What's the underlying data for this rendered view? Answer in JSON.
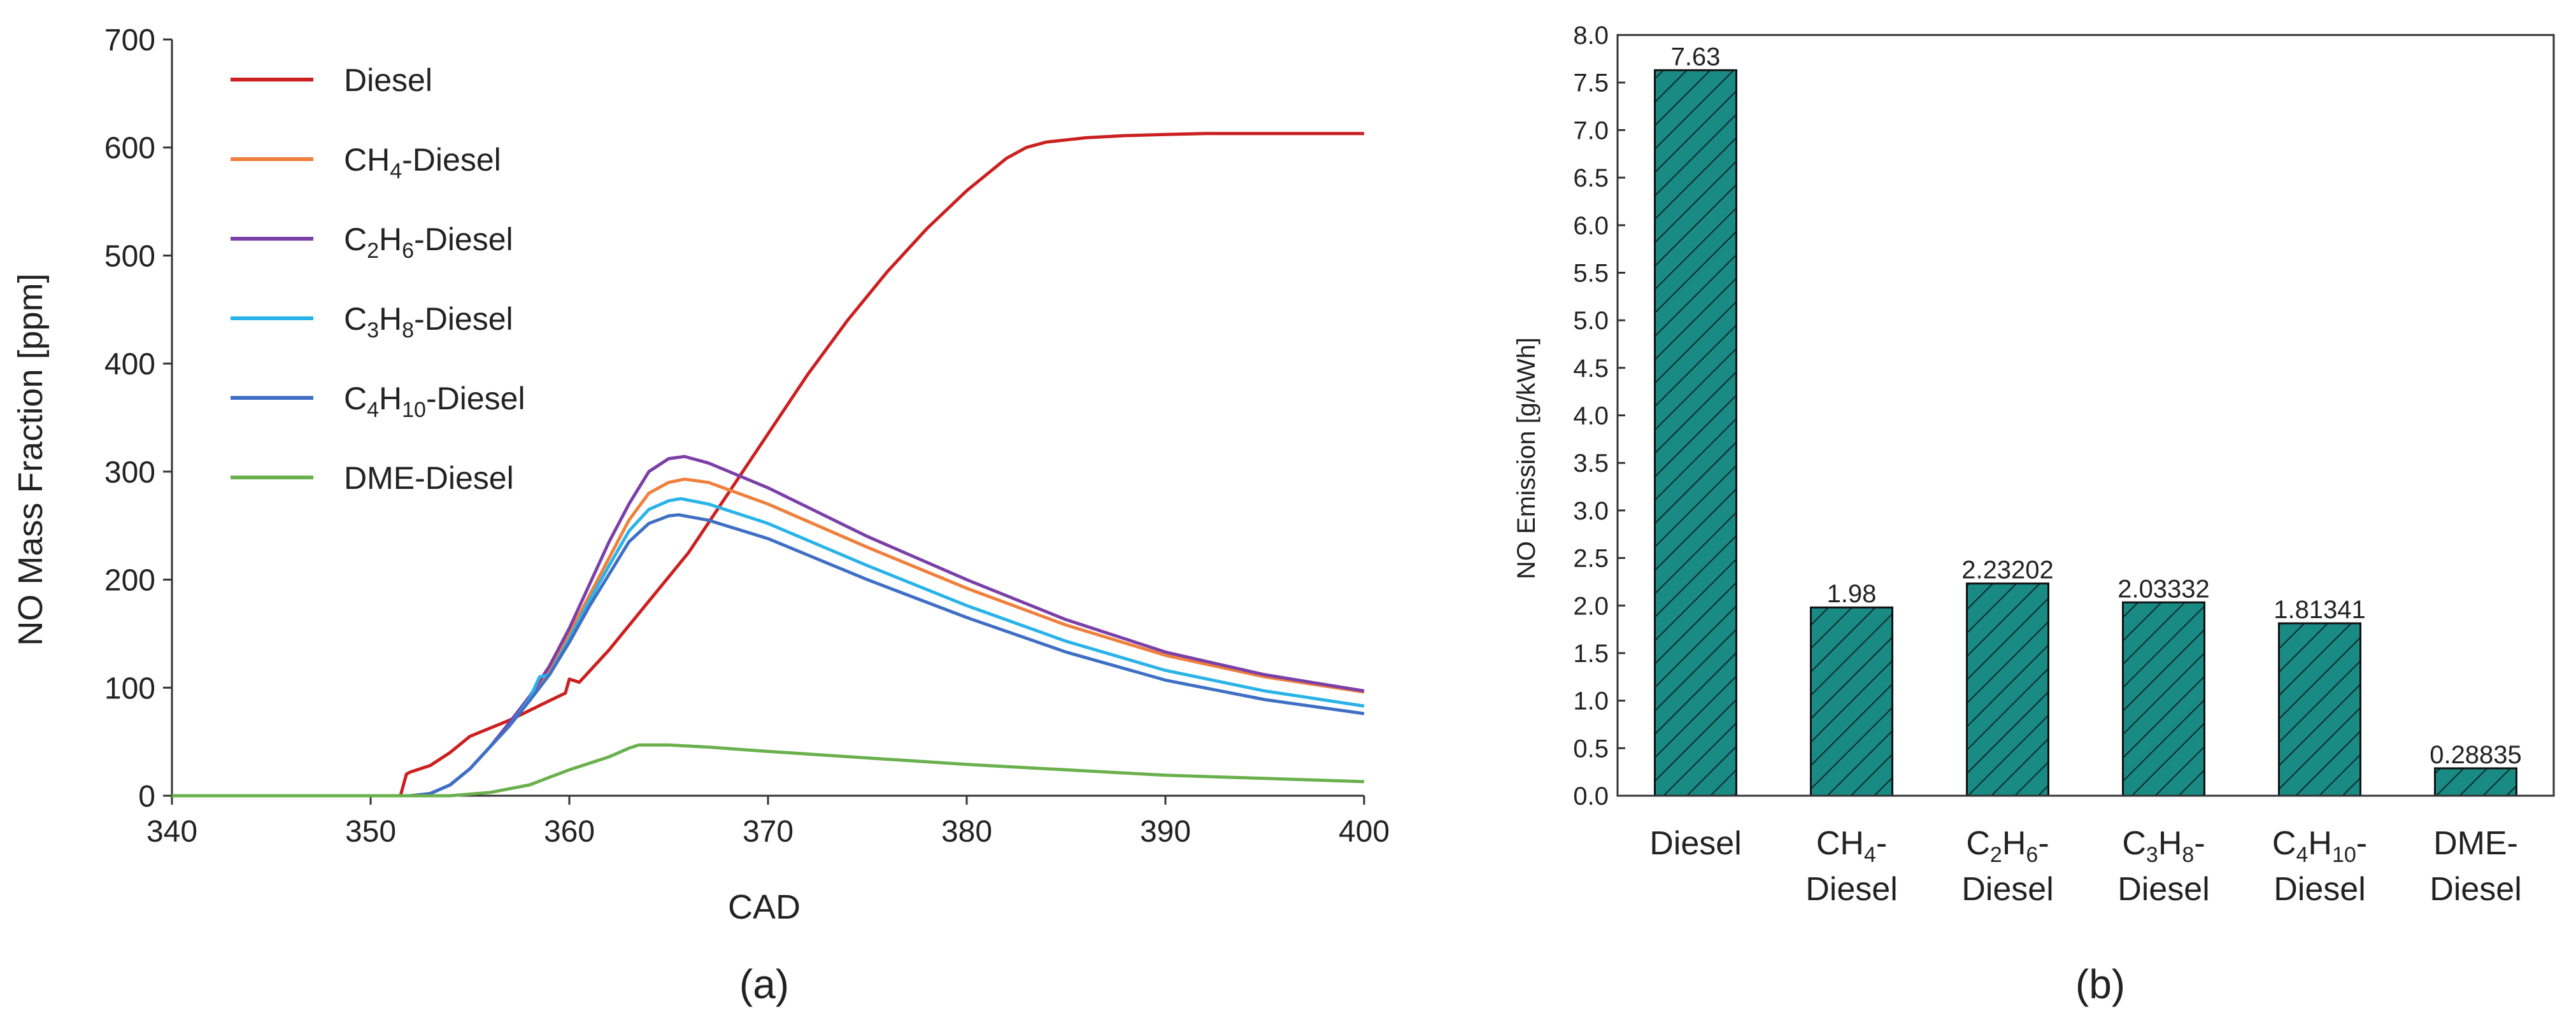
{
  "chart_data": [
    {
      "panel": "(a)",
      "type": "line",
      "title": "",
      "xlabel": "CAD",
      "ylabel": "NO Mass Fraction [ppm]",
      "xlim": [
        340,
        400
      ],
      "ylim": [
        0,
        700
      ],
      "xticks": [
        340,
        350,
        360,
        370,
        380,
        390,
        400
      ],
      "yticks": [
        0,
        100,
        200,
        300,
        400,
        500,
        600,
        700
      ],
      "grid": false,
      "legend": "top-left",
      "series": [
        {
          "name": "Diesel",
          "legend_parts": [
            [
              "Diesel",
              ""
            ]
          ],
          "color": "#cc1f1f",
          "x": [
            340,
            351.5,
            351.8,
            352.0,
            353.0,
            354.0,
            355.0,
            357.0,
            359.0,
            359.8,
            360.0,
            360.5,
            362.0,
            364.0,
            366.0,
            368.0,
            370.0,
            372.0,
            374.0,
            376.0,
            378.0,
            380.0,
            382.0,
            383.0,
            384.0,
            385.0,
            386.0,
            388.0,
            390.0,
            392.0,
            395.0,
            400.0
          ],
          "y": [
            0,
            0,
            20,
            22,
            28,
            40,
            55,
            70,
            88,
            95,
            108,
            105,
            135,
            180,
            225,
            280,
            335,
            390,
            440,
            485,
            525,
            560,
            590,
            600,
            605,
            607,
            609,
            611,
            612,
            613,
            613,
            613
          ]
        },
        {
          "name": "CH4-Diesel",
          "legend_parts": [
            [
              "CH",
              ""
            ],
            [
              "4",
              "sub"
            ],
            [
              "-Diesel",
              ""
            ]
          ],
          "color": "#f07f3c",
          "x": [
            340,
            352.0,
            353.0,
            354.0,
            355.0,
            356.0,
            357.0,
            358.0,
            359.0,
            360.0,
            361.0,
            362.0,
            363.0,
            364.0,
            365.0,
            365.8,
            367.0,
            370.0,
            375.0,
            380.0,
            385.0,
            390.0,
            395.0,
            400.0
          ],
          "y": [
            0,
            0,
            2,
            10,
            25,
            45,
            65,
            90,
            115,
            150,
            185,
            220,
            255,
            280,
            290,
            293,
            290,
            270,
            230,
            192,
            158,
            130,
            110,
            96
          ]
        },
        {
          "name": "C2H6-Diesel",
          "legend_parts": [
            [
              "C",
              ""
            ],
            [
              "2",
              "sub"
            ],
            [
              "H",
              ""
            ],
            [
              "6",
              "sub"
            ],
            [
              "-Diesel",
              ""
            ]
          ],
          "color": "#7b3fa8",
          "x": [
            340,
            352.0,
            353.0,
            354.0,
            355.0,
            356.0,
            357.0,
            358.0,
            359.0,
            360.0,
            361.0,
            362.0,
            363.0,
            364.0,
            365.0,
            365.8,
            367.0,
            370.0,
            375.0,
            380.0,
            385.0,
            390.0,
            395.0,
            400.0
          ],
          "y": [
            0,
            0,
            2,
            10,
            25,
            45,
            68,
            92,
            120,
            155,
            195,
            235,
            270,
            300,
            312,
            314,
            308,
            285,
            240,
            200,
            163,
            133,
            112,
            97
          ]
        },
        {
          "name": "C3H8-Diesel",
          "legend_parts": [
            [
              "C",
              ""
            ],
            [
              "3",
              "sub"
            ],
            [
              "H",
              ""
            ],
            [
              "8",
              "sub"
            ],
            [
              "-Diesel",
              ""
            ]
          ],
          "color": "#29b3e8",
          "x": [
            340,
            352.0,
            353.0,
            354.0,
            355.0,
            356.0,
            357.0,
            358.0,
            358.5,
            359.0,
            360.0,
            361.0,
            362.0,
            363.0,
            364.0,
            365.0,
            365.6,
            367.0,
            370.0,
            375.0,
            380.0,
            385.0,
            390.0,
            395.0,
            400.0
          ],
          "y": [
            0,
            0,
            2,
            10,
            25,
            45,
            65,
            90,
            110,
            112,
            145,
            180,
            213,
            245,
            265,
            273,
            275,
            270,
            252,
            213,
            176,
            143,
            116,
            97,
            83
          ]
        },
        {
          "name": "C4H10-Diesel",
          "legend_parts": [
            [
              "C",
              ""
            ],
            [
              "4",
              "sub"
            ],
            [
              "H",
              ""
            ],
            [
              "10",
              "sub"
            ],
            [
              "-Diesel",
              ""
            ]
          ],
          "color": "#3f6fc4",
          "x": [
            340,
            352.0,
            353.0,
            354.0,
            355.0,
            356.0,
            357.0,
            358.0,
            359.0,
            360.0,
            361.0,
            362.0,
            363.0,
            364.0,
            365.0,
            365.5,
            367.0,
            370.0,
            375.0,
            380.0,
            385.0,
            390.0,
            395.0,
            400.0
          ],
          "y": [
            0,
            0,
            2,
            10,
            25,
            45,
            65,
            88,
            112,
            142,
            175,
            205,
            235,
            252,
            259,
            260,
            255,
            238,
            200,
            165,
            133,
            107,
            89,
            76
          ]
        },
        {
          "name": "DME-Diesel",
          "legend_parts": [
            [
              "DME-Diesel",
              ""
            ]
          ],
          "color": "#6ab04c",
          "x": [
            340,
            354.0,
            356.0,
            358.0,
            359.0,
            360.0,
            361.0,
            362.0,
            363.0,
            363.5,
            364.0,
            365.0,
            367.0,
            370.0,
            375.0,
            380.0,
            385.0,
            390.0,
            395.0,
            400.0
          ],
          "y": [
            0,
            0,
            3,
            10,
            17,
            24,
            30,
            36,
            44,
            47,
            47,
            47,
            45,
            41,
            35,
            29,
            24,
            19,
            16,
            13
          ]
        }
      ]
    },
    {
      "panel": "(b)",
      "type": "bar",
      "title": "",
      "xlabel": "",
      "ylabel": "NO Emission [g/kWh]",
      "ylim": [
        0,
        8
      ],
      "yticks": [
        "0.0",
        "0.5",
        "1.0",
        "1.5",
        "2.0",
        "2.5",
        "3.0",
        "3.5",
        "4.0",
        "4.5",
        "5.0",
        "5.5",
        "6.0",
        "6.5",
        "7.0",
        "7.5",
        "8.0"
      ],
      "grid": false,
      "bar_color": "#1a8a84",
      "hatch": "diagonal",
      "categories": [
        "Diesel",
        "CH4-Diesel",
        "C2H6-Diesel",
        "C3H8-Diesel",
        "C4H10-Diesel",
        "DME-Diesel"
      ],
      "category_lines": [
        [
          [
            [
              "Diesel",
              ""
            ]
          ]
        ],
        [
          [
            [
              "CH",
              ""
            ],
            [
              "4",
              "sub"
            ],
            [
              "-",
              ""
            ]
          ],
          [
            [
              "Diesel",
              ""
            ]
          ]
        ],
        [
          [
            [
              "C",
              ""
            ],
            [
              "2",
              "sub"
            ],
            [
              "H",
              ""
            ],
            [
              "6",
              "sub"
            ],
            [
              "-",
              ""
            ]
          ],
          [
            [
              "Diesel",
              ""
            ]
          ]
        ],
        [
          [
            [
              "C",
              ""
            ],
            [
              "3",
              "sub"
            ],
            [
              "H",
              ""
            ],
            [
              "8",
              "sub"
            ],
            [
              "-",
              ""
            ]
          ],
          [
            [
              "Diesel",
              ""
            ]
          ]
        ],
        [
          [
            [
              "C",
              ""
            ],
            [
              "4",
              "sub"
            ],
            [
              "H",
              ""
            ],
            [
              "10",
              "sub"
            ],
            [
              "-",
              ""
            ]
          ],
          [
            [
              "Diesel",
              ""
            ]
          ]
        ],
        [
          [
            [
              "DME-",
              ""
            ]
          ],
          [
            [
              "Diesel",
              ""
            ]
          ]
        ]
      ],
      "values": [
        7.63,
        1.98,
        2.23202,
        2.03332,
        1.81341,
        0.28835
      ],
      "value_labels": [
        "7.63",
        "1.98",
        "2.23202",
        "2.03332",
        "1.81341",
        "0.28835"
      ]
    }
  ],
  "panel_labels": {
    "a": "(a)",
    "b": "(b)"
  }
}
